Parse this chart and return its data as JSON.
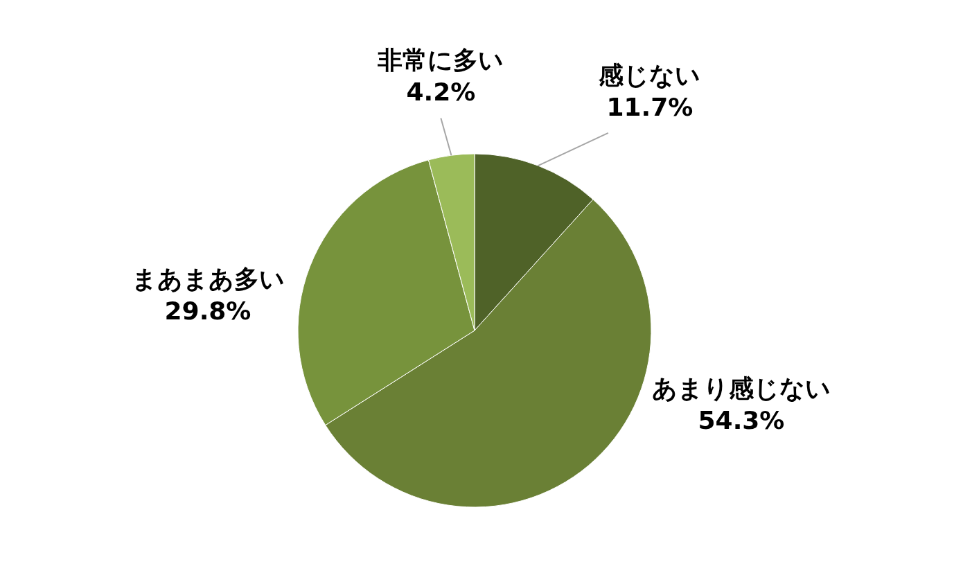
{
  "chart_data": {
    "type": "pie",
    "categories": [
      "感じない",
      "あまり感じない",
      "まあまあ多い",
      "非常に多い"
    ],
    "values": [
      11.7,
      54.3,
      29.8,
      4.2
    ],
    "value_labels": [
      "11.7%",
      "54.3%",
      "29.8%",
      "4.2%"
    ],
    "colors": [
      "#4f6228",
      "#6a8035",
      "#77933c",
      "#9bbb59"
    ]
  }
}
